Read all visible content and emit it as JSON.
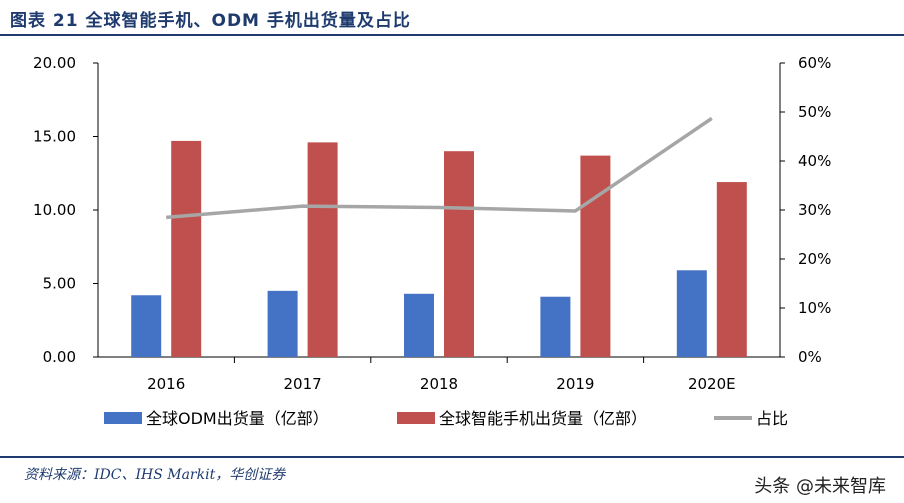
{
  "header": {
    "title": "图表 21   全球智能手机、ODM 手机出货量及占比"
  },
  "footer": {
    "source": "资料来源：IDC、IHS Markit，华创证券",
    "watermark": "头条 @未来智库"
  },
  "chart_data": {
    "type": "bar",
    "title": "图表 21   全球智能手机、ODM 手机出货量及占比",
    "categories": [
      "2016",
      "2017",
      "2018",
      "2019",
      "2020E"
    ],
    "series": [
      {
        "name": "全球ODM出货量（亿部）",
        "type": "bar",
        "axis": "left",
        "color": "#4472c4",
        "values": [
          4.2,
          4.5,
          4.3,
          4.1,
          5.9
        ]
      },
      {
        "name": "全球智能手机出货量（亿部）",
        "type": "bar",
        "axis": "left",
        "color": "#c0504d",
        "values": [
          14.7,
          14.6,
          14.0,
          13.7,
          11.9
        ]
      },
      {
        "name": "占比",
        "type": "line",
        "axis": "right",
        "color": "#a6a6a6",
        "values": [
          28.5,
          30.8,
          30.5,
          29.8,
          48.7
        ]
      }
    ],
    "ylim_left": [
      0,
      20
    ],
    "yticks_left": [
      "0.00",
      "5.00",
      "10.00",
      "15.00",
      "20.00"
    ],
    "ylim_right": [
      0,
      60
    ],
    "yticks_right": [
      "0%",
      "10%",
      "20%",
      "30%",
      "40%",
      "50%",
      "60%"
    ],
    "grid": false,
    "legend_position": "bottom"
  }
}
